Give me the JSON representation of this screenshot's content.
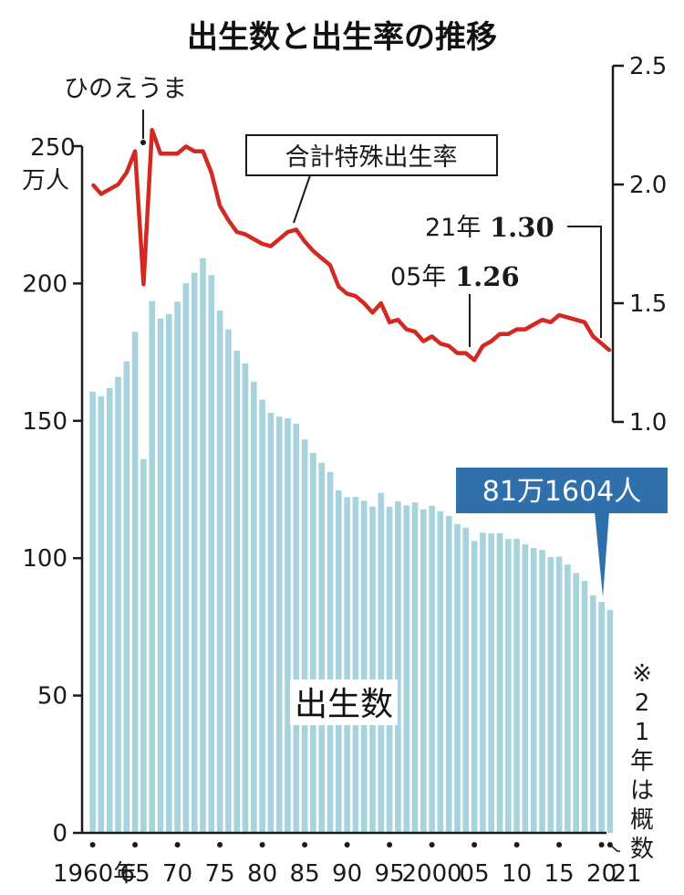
{
  "title": "出生数と出生率の推移",
  "left_axis": {
    "unit_line1": "250",
    "unit_line2": "万人",
    "ticks": [
      "200",
      "150",
      "100",
      "50",
      "0"
    ]
  },
  "right_axis": {
    "ticks": [
      "2.5",
      "2.0",
      "1.5",
      "1.0"
    ]
  },
  "x_axis": {
    "tick_labels": [
      "1960年",
      "65",
      "70",
      "75",
      "80",
      "85",
      "90",
      "95",
      "2000",
      "05",
      "10",
      "15",
      "20",
      "21"
    ]
  },
  "annotations": {
    "hinoeuma": "ひのえうま",
    "tfr_label": "合計特殊出生率",
    "label_2005_year": "05年",
    "label_2005_value": "1.26",
    "label_2021_year": "21年",
    "label_2021_value": "1.30",
    "births_label": "出生数",
    "latest_births": "81万1604人",
    "note": "※21年は概数"
  },
  "colors": {
    "bar": "#a6d3dc",
    "line": "#d22a22",
    "callout_bg": "#2f6fac"
  },
  "chart_data": {
    "type": "bar",
    "title": "出生数と出生率の推移",
    "x": [
      1960,
      1961,
      1962,
      1963,
      1964,
      1965,
      1966,
      1967,
      1968,
      1969,
      1970,
      1971,
      1972,
      1973,
      1974,
      1975,
      1976,
      1977,
      1978,
      1979,
      1980,
      1981,
      1982,
      1983,
      1984,
      1985,
      1986,
      1987,
      1988,
      1989,
      1990,
      1991,
      1992,
      1993,
      1994,
      1995,
      1996,
      1997,
      1998,
      1999,
      2000,
      2001,
      2002,
      2003,
      2004,
      2005,
      2006,
      2007,
      2008,
      2009,
      2010,
      2011,
      2012,
      2013,
      2014,
      2015,
      2016,
      2017,
      2018,
      2019,
      2020,
      2021
    ],
    "series": [
      {
        "name": "出生数",
        "axis": "left",
        "type": "bar",
        "values": [
          160.6,
          158.9,
          161.9,
          166.0,
          171.7,
          182.4,
          136.1,
          193.6,
          187.2,
          188.9,
          193.4,
          200.1,
          203.9,
          209.2,
          203.0,
          190.1,
          183.3,
          175.5,
          170.9,
          164.3,
          157.7,
          152.9,
          151.5,
          150.9,
          149.0,
          143.2,
          138.3,
          134.7,
          131.4,
          124.7,
          122.2,
          122.3,
          120.9,
          118.8,
          123.8,
          118.7,
          120.7,
          119.2,
          120.3,
          117.8,
          119.1,
          117.1,
          115.4,
          112.4,
          111.1,
          106.3,
          109.3,
          109.0,
          109.1,
          107.0,
          107.1,
          105.1,
          103.7,
          103.0,
          100.4,
          100.6,
          97.7,
          94.6,
          91.8,
          86.5,
          84.1,
          81.2
        ]
      },
      {
        "name": "合計特殊出生率",
        "axis": "right",
        "type": "line",
        "values": [
          2.0,
          1.96,
          1.98,
          2.0,
          2.05,
          2.14,
          1.58,
          2.23,
          2.13,
          2.13,
          2.13,
          2.16,
          2.14,
          2.14,
          2.05,
          1.91,
          1.85,
          1.8,
          1.79,
          1.77,
          1.75,
          1.74,
          1.77,
          1.8,
          1.81,
          1.76,
          1.72,
          1.69,
          1.66,
          1.57,
          1.54,
          1.53,
          1.5,
          1.46,
          1.5,
          1.42,
          1.43,
          1.39,
          1.38,
          1.34,
          1.36,
          1.33,
          1.32,
          1.29,
          1.29,
          1.26,
          1.32,
          1.34,
          1.37,
          1.37,
          1.39,
          1.39,
          1.41,
          1.43,
          1.42,
          1.45,
          1.44,
          1.43,
          1.42,
          1.36,
          1.33,
          1.3
        ]
      }
    ],
    "ylim_left": [
      0,
      250
    ],
    "ylim_right": [
      1.0,
      2.5
    ],
    "ylabel_left": "万人"
  }
}
